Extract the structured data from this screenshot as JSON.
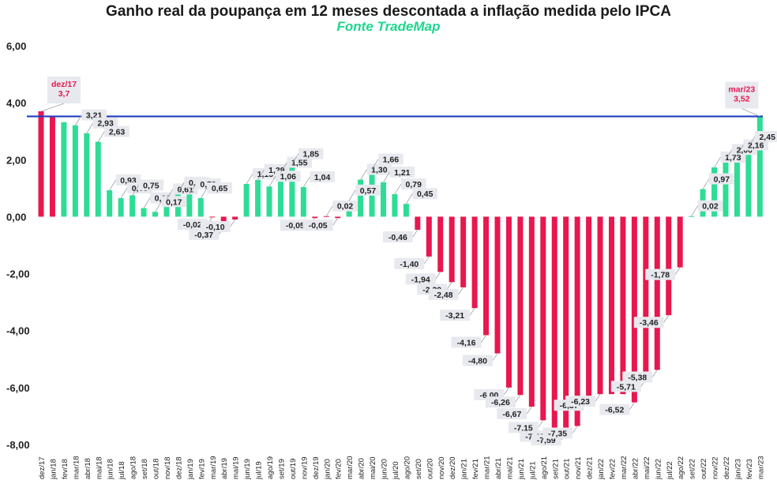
{
  "chart_data": {
    "type": "bar",
    "title": "Ganho real da poupança em 12 meses descontada a inflação medida pelo IPCA",
    "subtitle": "Fonte TradeMap",
    "ylim": [
      -8,
      6
    ],
    "yticks": [
      "6,00",
      "4,00",
      "2,00",
      "0,00",
      "-2,00",
      "-4,00",
      "-6,00",
      "-8,00"
    ],
    "categories": [
      "dez/17",
      "jan/18",
      "fev/18",
      "mar/18",
      "abr/18",
      "mai/18",
      "jun/18",
      "jul/18",
      "ago/18",
      "set/18",
      "out/18",
      "nov/18",
      "dez/18",
      "jan/19",
      "fev/19",
      "mar/19",
      "abr/19",
      "mai/19",
      "jun/19",
      "jul/19",
      "ago/19",
      "set/19",
      "out/19",
      "nov/19",
      "dez/19",
      "jan/20",
      "fev/20",
      "mar/20",
      "abr/20",
      "mai/20",
      "jun/20",
      "jul/20",
      "ago/20",
      "set/20",
      "out/20",
      "nov/20",
      "dez/20",
      "jan/21",
      "fev/21",
      "mar/21",
      "abr/21",
      "mai/21",
      "jun/21",
      "jul/21",
      "ago/21",
      "set/21",
      "out/21",
      "nov/21",
      "dez/21",
      "jan/22",
      "fev/22",
      "mar/22",
      "abr/22",
      "mai/22",
      "jun/22",
      "jul/22",
      "ago/22",
      "set/22",
      "out/22",
      "nov/22",
      "dez/22",
      "jan/23",
      "fev/23",
      "mar/23"
    ],
    "values": [
      3.7,
      3.5,
      3.32,
      3.21,
      2.93,
      2.63,
      0.93,
      0.65,
      0.75,
      0.3,
      0.17,
      0.61,
      0.85,
      0.79,
      0.65,
      -0.02,
      -0.37,
      -0.1,
      1.15,
      1.29,
      1.06,
      1.55,
      1.85,
      1.04,
      -0.05,
      0.02,
      -0.05,
      0.57,
      1.3,
      1.66,
      1.21,
      0.79,
      0.45,
      -0.46,
      -1.4,
      -1.94,
      -2.3,
      -2.48,
      -3.21,
      -4.16,
      -4.8,
      -6.0,
      -6.26,
      -6.67,
      -7.15,
      -7.46,
      -7.59,
      -7.35,
      -6.37,
      -6.23,
      -6.23,
      -6.23,
      -6.52,
      -5.71,
      -5.38,
      -3.46,
      -1.78,
      0.02,
      0.97,
      1.73,
      2.0,
      2.16,
      2.45,
      3.52
    ],
    "bar_colors": [
      "#e8174f",
      "#e8174f",
      "#2edc96",
      "#2edc96",
      "#2edc96",
      "#2edc96",
      "#2edc96",
      "#2edc96",
      "#2edc96",
      "#2edc96",
      "#2edc96",
      "#2edc96",
      "#2edc96",
      "#2edc96",
      "#2edc96",
      "#e8174f",
      "#e8174f",
      "#e8174f",
      "#2edc96",
      "#2edc96",
      "#2edc96",
      "#2edc96",
      "#2edc96",
      "#2edc96",
      "#e8174f",
      "#e8174f",
      "#e8174f",
      "#2edc96",
      "#2edc96",
      "#2edc96",
      "#2edc96",
      "#2edc96",
      "#2edc96",
      "#e8174f",
      "#e8174f",
      "#e8174f",
      "#e8174f",
      "#e8174f",
      "#e8174f",
      "#e8174f",
      "#e8174f",
      "#e8174f",
      "#e8174f",
      "#e8174f",
      "#e8174f",
      "#e8174f",
      "#e8174f",
      "#e8174f",
      "#e8174f",
      "#e8174f",
      "#e8174f",
      "#e8174f",
      "#e8174f",
      "#e8174f",
      "#e8174f",
      "#e8174f",
      "#e8174f",
      "#2edc96",
      "#2edc96",
      "#2edc96",
      "#2edc96",
      "#2edc96",
      "#2edc96",
      "#2edc96"
    ],
    "reference_line": 3.52,
    "labels": [
      {
        "i": 3,
        "text": "3,21"
      },
      {
        "i": 4,
        "text": "2,93"
      },
      {
        "i": 5,
        "text": "2,63"
      },
      {
        "i": 6,
        "text": "0,93"
      },
      {
        "i": 7,
        "text": "0,65"
      },
      {
        "i": 8,
        "text": "0,75"
      },
      {
        "i": 9,
        "text": "0,30"
      },
      {
        "i": 10,
        "text": "0,17"
      },
      {
        "i": 11,
        "text": "0,61"
      },
      {
        "i": 12,
        "text": "0,85"
      },
      {
        "i": 13,
        "text": "0,79"
      },
      {
        "i": 14,
        "text": "0,65"
      },
      {
        "i": 15,
        "text": "-0,02"
      },
      {
        "i": 16,
        "text": "-0,37"
      },
      {
        "i": 17,
        "text": "-0,10"
      },
      {
        "i": 18,
        "text": "1,15"
      },
      {
        "i": 19,
        "text": "1,29"
      },
      {
        "i": 20,
        "text": "1,06"
      },
      {
        "i": 21,
        "text": "1,55"
      },
      {
        "i": 22,
        "text": "1,85"
      },
      {
        "i": 23,
        "text": "1,04"
      },
      {
        "i": 24,
        "text": "-0,05"
      },
      {
        "i": 25,
        "text": "0,02"
      },
      {
        "i": 26,
        "text": "-0,05"
      },
      {
        "i": 27,
        "text": "0,57"
      },
      {
        "i": 28,
        "text": "1,30"
      },
      {
        "i": 29,
        "text": "1,66"
      },
      {
        "i": 30,
        "text": "1,21"
      },
      {
        "i": 31,
        "text": "0,79"
      },
      {
        "i": 32,
        "text": "0,45"
      },
      {
        "i": 33,
        "text": "-0,46"
      },
      {
        "i": 34,
        "text": "-1,40"
      },
      {
        "i": 35,
        "text": "-1,94"
      },
      {
        "i": 36,
        "text": "-2,30"
      },
      {
        "i": 37,
        "text": "-2,48"
      },
      {
        "i": 38,
        "text": "-3,21"
      },
      {
        "i": 39,
        "text": "-4,16"
      },
      {
        "i": 40,
        "text": "-4,80"
      },
      {
        "i": 41,
        "text": "-6,00"
      },
      {
        "i": 42,
        "text": "-6,26"
      },
      {
        "i": 43,
        "text": "-6,67"
      },
      {
        "i": 44,
        "text": "-7,15"
      },
      {
        "i": 45,
        "text": "-7,46"
      },
      {
        "i": 46,
        "text": "-7,59"
      },
      {
        "i": 47,
        "text": "-7,35"
      },
      {
        "i": 48,
        "text": "-6,37"
      },
      {
        "i": 49,
        "text": "-6,23"
      },
      {
        "i": 52,
        "text": "-6,52"
      },
      {
        "i": 53,
        "text": "-5,71"
      },
      {
        "i": 54,
        "text": "-5,38"
      },
      {
        "i": 55,
        "text": "-3,46"
      },
      {
        "i": 56,
        "text": "-1,78"
      },
      {
        "i": 57,
        "text": "0,02"
      },
      {
        "i": 58,
        "text": "0,97"
      },
      {
        "i": 59,
        "text": "1,73"
      },
      {
        "i": 60,
        "text": "2,00"
      },
      {
        "i": 61,
        "text": "2,16"
      },
      {
        "i": 62,
        "text": "2,45"
      }
    ],
    "callouts": [
      {
        "i": 0,
        "lines": [
          "dez/17",
          "3,7"
        ]
      },
      {
        "i": 63,
        "lines": [
          "mar/23",
          "3,52"
        ]
      }
    ],
    "colors": {
      "negative": "#e8174f",
      "positive": "#2edc96",
      "reference": "#1f3fbf",
      "subtitle": "#1fd68e",
      "label_bg": "#e8e9ee",
      "callout_text": "#e8174f"
    }
  }
}
